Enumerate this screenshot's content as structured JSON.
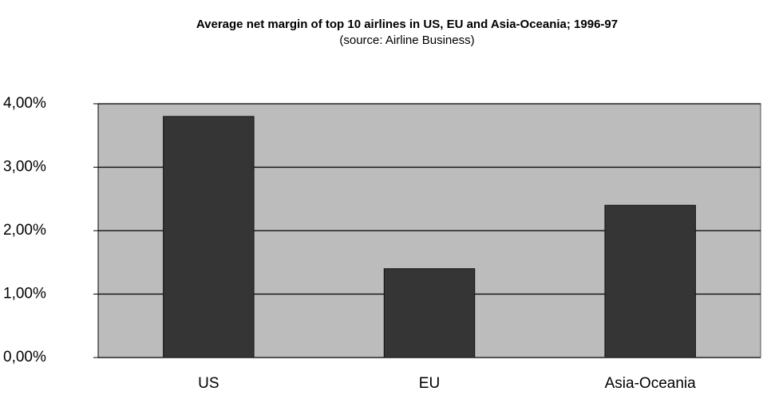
{
  "chart_data": {
    "type": "bar",
    "title": "Average net margin of top 10 airlines in US, EU and Asia-Oceania; 1996-97",
    "subtitle": "(source: Airline Business)",
    "categories": [
      "US",
      "EU",
      "Asia-Oceania"
    ],
    "values": [
      3.8,
      1.4,
      2.4
    ],
    "color": "#353535",
    "ylim": [
      0,
      4
    ],
    "yticks": [
      {
        "value": 0,
        "label": "0,00%"
      },
      {
        "value": 1,
        "label": "1,00%"
      },
      {
        "value": 2,
        "label": "2,00%"
      },
      {
        "value": 3,
        "label": "3,00%"
      },
      {
        "value": 4,
        "label": "4,00%"
      }
    ],
    "grid": true
  }
}
